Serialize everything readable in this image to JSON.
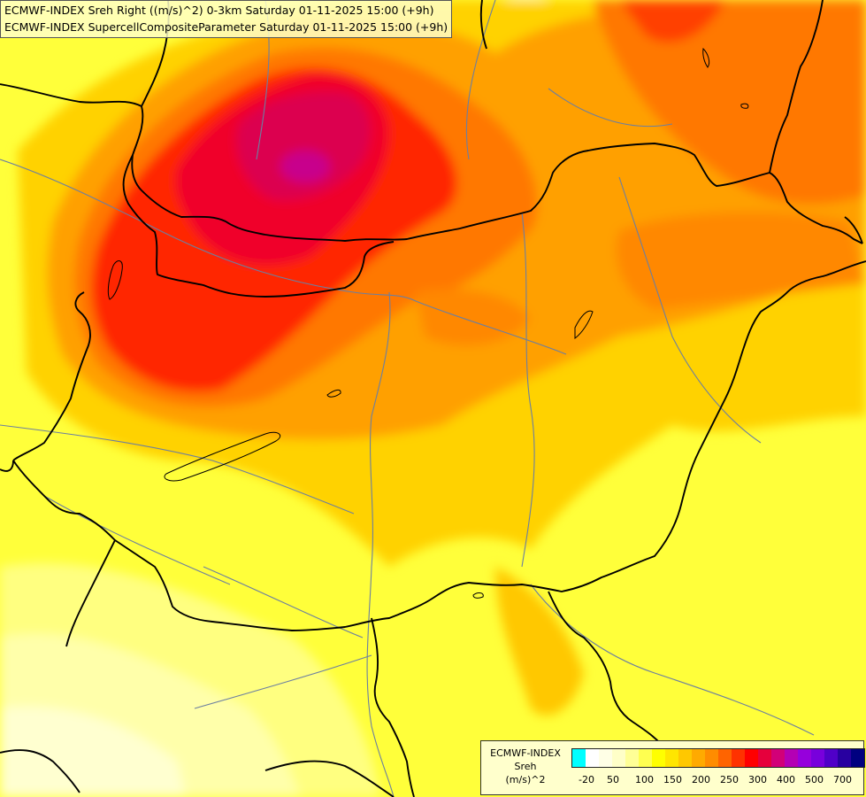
{
  "title_lines": [
    "ECMWF-INDEX Sreh Right ((m/s)^2) 0-3km Saturday 01-11-2025 15:00 (+9h)",
    "ECMWF-INDEX SupercellCompositeParameter Saturday 01-11-2025 15:00 (+9h)"
  ],
  "legend": {
    "line1": "ECMWF-INDEX",
    "line2": "Sreh",
    "line3": "(m/s)^2",
    "colors": [
      "#00ffff",
      "#ffffff",
      "#ffffe6",
      "#ffffc8",
      "#ffff96",
      "#ffff50",
      "#ffff00",
      "#ffe600",
      "#ffc800",
      "#ffaa00",
      "#ff8c00",
      "#ff6400",
      "#ff3200",
      "#ff0000",
      "#e6003c",
      "#d20078",
      "#b400b4",
      "#9600dc",
      "#7800dc",
      "#5000c8",
      "#2800a0",
      "#000080"
    ],
    "tick_labels": [
      "-20",
      "50",
      "100",
      "150",
      "200",
      "250",
      "300",
      "400",
      "500",
      "700"
    ]
  }
}
